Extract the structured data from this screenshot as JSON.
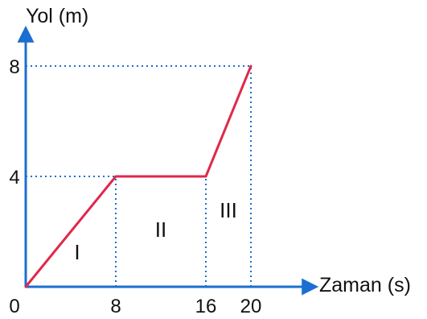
{
  "colors": {
    "axis": "#1b6fd1",
    "guide": "#1b6fd1",
    "series": "#e0284a",
    "text": "#111111"
  },
  "chart_data": {
    "type": "line",
    "title": "",
    "xlabel": "Zaman (s)",
    "ylabel": "Yol (m)",
    "xlim": [
      0,
      20
    ],
    "ylim": [
      0,
      8
    ],
    "x_ticks": [
      "0",
      "8",
      "16",
      "20"
    ],
    "y_ticks": [
      "4",
      "8"
    ],
    "grid": false,
    "series": [
      {
        "x": [
          0,
          8,
          16,
          20
        ],
        "y": [
          0,
          4,
          4,
          8
        ]
      }
    ],
    "regions": [
      {
        "label": "I",
        "x_from": 0,
        "x_to": 8
      },
      {
        "label": "II",
        "x_from": 8,
        "x_to": 16
      },
      {
        "label": "III",
        "x_from": 16,
        "x_to": 20
      }
    ]
  }
}
